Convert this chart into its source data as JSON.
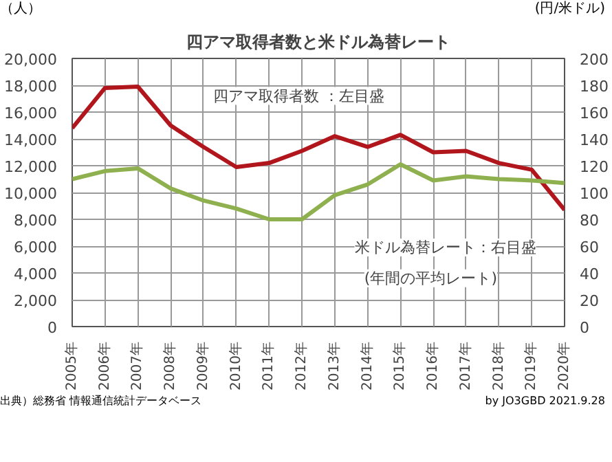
{
  "chart_data": {
    "type": "line",
    "title": "四アマ取得者数と米ドル為替レート",
    "ylabel": "（人）",
    "y2label": "(円/米ドル)",
    "categories": [
      "2005年",
      "2006年",
      "2007年",
      "2008年",
      "2009年",
      "2010年",
      "2011年",
      "2012年",
      "2013年",
      "2014年",
      "2015年",
      "2016年",
      "2017年",
      "2018年",
      "2019年",
      "2020年"
    ],
    "series": [
      {
        "color": "#b0161c",
        "values": [
          14800,
          17800,
          17900,
          15000,
          13400,
          11900,
          12200,
          13100,
          14200,
          13400,
          14300,
          13000,
          13100,
          12200,
          11700,
          8700
        ]
      },
      {
        "color": "#8fb04e",
        "axis": "y2",
        "values": [
          110,
          116,
          118,
          103,
          94,
          88,
          80,
          80,
          98,
          106,
          121,
          109,
          112,
          110,
          109,
          107
        ]
      }
    ],
    "ylim": [
      0,
      20000
    ],
    "yticks": [
      0,
      {
        "value": 2000,
        "label": "2,000"
      },
      {
        "value": 4000,
        "label": "4,000"
      },
      {
        "value": 6000,
        "label": "6,000"
      },
      {
        "value": 8000,
        "label": "8,000"
      },
      {
        "value": 10000,
        "label": "10,000"
      },
      {
        "value": 12000,
        "label": "12,000"
      },
      {
        "value": 14000,
        "label": "14,000"
      },
      {
        "value": 16000,
        "label": "16,000"
      },
      {
        "value": 18000,
        "label": "18,000"
      },
      {
        "value": 20000,
        "label": "20,000"
      }
    ],
    "y2lim": [
      0,
      200
    ],
    "y2ticks": [
      0,
      20,
      40,
      60,
      80,
      100,
      120,
      140,
      160,
      180,
      200
    ],
    "grid": true,
    "marker": "none",
    "line_style": "solid",
    "annotations": [
      "四アマ取得者数 ：左目盛",
      "米ドル為替レート：右目盛",
      "(年間の平均レート)",
      "出典）総務省 情報通信統計データベース",
      "by JO3GBD 2021.9.28"
    ]
  }
}
